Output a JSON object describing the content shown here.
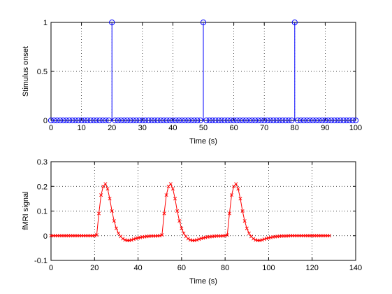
{
  "chart_data": [
    {
      "type": "stem",
      "title": "",
      "xlabel": "Time (s)",
      "ylabel": "Stimulus onset",
      "xlim": [
        0,
        100
      ],
      "ylim": [
        0,
        1
      ],
      "xticks": [
        "0",
        "10",
        "20",
        "30",
        "40",
        "50",
        "60",
        "70",
        "80",
        "90",
        "100"
      ],
      "yticks": [
        "0",
        "0.5",
        "1"
      ],
      "grid": true,
      "color": "#0000ff",
      "marker": "o",
      "x_range": [
        0,
        100
      ],
      "x_step": 1,
      "onsets": [
        20,
        50,
        80
      ],
      "onset_value": 1,
      "baseline_value": 0
    },
    {
      "type": "line",
      "title": "",
      "xlabel": "Time (s)",
      "ylabel": "fMRI signal",
      "xlim": [
        0,
        140
      ],
      "ylim": [
        -0.1,
        0.3
      ],
      "xticks": [
        "0",
        "20",
        "40",
        "60",
        "80",
        "100",
        "120",
        "140"
      ],
      "yticks": [
        "-0.1",
        "0",
        "0.1",
        "0.2",
        "0.3"
      ],
      "grid": true,
      "color": "#ff0000",
      "marker": "x",
      "x": [
        0,
        1,
        2,
        3,
        4,
        5,
        6,
        7,
        8,
        9,
        10,
        11,
        12,
        13,
        14,
        15,
        16,
        17,
        18,
        19,
        20,
        21,
        22,
        23,
        24,
        25,
        26,
        27,
        28,
        29,
        30,
        31,
        32,
        33,
        34,
        35,
        36,
        37,
        38,
        39,
        40,
        41,
        42,
        43,
        44,
        45,
        46,
        47,
        48,
        49,
        50,
        51,
        52,
        53,
        54,
        55,
        56,
        57,
        58,
        59,
        60,
        61,
        62,
        63,
        64,
        65,
        66,
        67,
        68,
        69,
        70,
        71,
        72,
        73,
        74,
        75,
        76,
        77,
        78,
        79,
        80,
        81,
        82,
        83,
        84,
        85,
        86,
        87,
        88,
        89,
        90,
        91,
        92,
        93,
        94,
        95,
        96,
        97,
        98,
        99,
        100,
        101,
        102,
        103,
        104,
        105,
        106,
        107,
        108,
        109,
        110,
        111,
        112,
        113,
        114,
        115,
        116,
        117,
        118,
        119,
        120,
        121,
        122,
        123,
        124,
        125,
        126,
        127,
        128
      ],
      "y": [
        0,
        0,
        0,
        0,
        0,
        0,
        0,
        0,
        0,
        0,
        0,
        0,
        0,
        0,
        0,
        0,
        0,
        0,
        0,
        0,
        0,
        0.003,
        0.09,
        0.165,
        0.2,
        0.21,
        0.19,
        0.15,
        0.1,
        0.06,
        0.03,
        0.01,
        -0.003,
        -0.012,
        -0.017,
        -0.019,
        -0.019,
        -0.017,
        -0.014,
        -0.011,
        -0.009,
        -0.007,
        -0.005,
        -0.004,
        -0.003,
        -0.002,
        -0.001,
        -0.001,
        -0.001,
        -0.0005,
        0,
        0.003,
        0.09,
        0.165,
        0.2,
        0.21,
        0.19,
        0.15,
        0.1,
        0.06,
        0.03,
        0.01,
        -0.003,
        -0.012,
        -0.017,
        -0.019,
        -0.019,
        -0.017,
        -0.014,
        -0.011,
        -0.009,
        -0.007,
        -0.005,
        -0.004,
        -0.003,
        -0.002,
        -0.001,
        -0.001,
        -0.001,
        -0.0005,
        0,
        0.003,
        0.09,
        0.165,
        0.2,
        0.21,
        0.19,
        0.15,
        0.1,
        0.06,
        0.03,
        0.01,
        -0.003,
        -0.012,
        -0.017,
        -0.019,
        -0.019,
        -0.017,
        -0.014,
        -0.011,
        -0.009,
        -0.007,
        -0.005,
        -0.004,
        -0.003,
        -0.002,
        -0.001,
        -0.001,
        -0.001,
        -0.0005,
        0,
        0,
        0,
        0,
        0,
        0,
        0,
        0,
        0,
        0,
        0,
        0,
        0,
        0,
        0,
        0,
        0,
        0,
        0
      ]
    }
  ]
}
